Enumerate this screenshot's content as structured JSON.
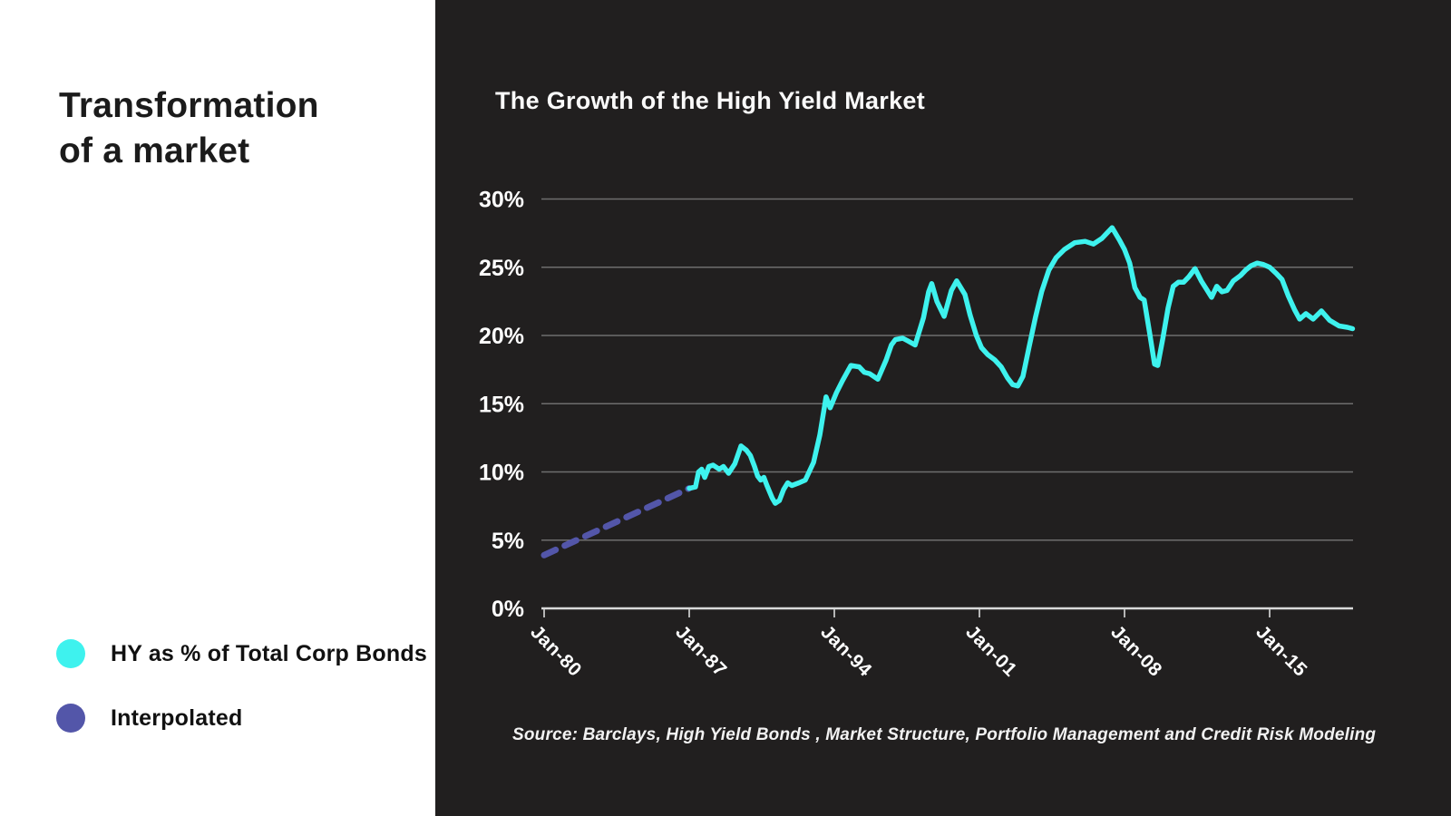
{
  "left_panel": {
    "title_line1": "Transformation",
    "title_line2": "of a market",
    "legend": [
      {
        "label": "HY as % of Total Corp Bonds",
        "color": "#3ef2ee"
      },
      {
        "label": "Interpolated",
        "color": "#5356a9"
      }
    ]
  },
  "chart": {
    "title": "The Growth of the High Yield Market",
    "source": "Source: Barclays, High Yield Bonds , Market Structure, Portfolio Management and Credit Risk Modeling",
    "colors": {
      "background": "#211f1f",
      "panel": "#ffffff",
      "grid": "#6e6e6e",
      "axis": "#d9d9d9",
      "tick": "#b5b5b5",
      "hy_line": "#3ef2ee",
      "interpolated_line": "#5356a9",
      "text": "#ffffff"
    }
  },
  "chart_data": {
    "type": "line",
    "title": "The Growth of the High Yield Market",
    "xlabel": "",
    "ylabel": "HY as % of Total Corp Bonds",
    "ylim": [
      0,
      30
    ],
    "xlim": [
      1980,
      2019
    ],
    "grid": true,
    "legend_position": "left-panel",
    "y_tick_values": [
      0,
      5,
      10,
      15,
      20,
      25,
      30
    ],
    "y_ticks": [
      "0%",
      "5%",
      "10%",
      "15%",
      "20%",
      "25%",
      "30%"
    ],
    "x_tick_years": [
      1980,
      1987,
      1994,
      2001,
      2008,
      2015
    ],
    "x_ticks": [
      "Jan-80",
      "Jan-87",
      "Jan-94",
      "Jan-01",
      "Jan-08",
      "Jan-15"
    ],
    "series": [
      {
        "name": "Interpolated",
        "style": "dashed",
        "color": "#5356a9",
        "points": [
          [
            1980.0,
            3.9
          ],
          [
            1987.0,
            8.8
          ]
        ]
      },
      {
        "name": "HY as % of Total Corp Bonds",
        "style": "solid",
        "color": "#3ef2ee",
        "points": [
          [
            1987.0,
            8.8
          ],
          [
            1987.3,
            8.9
          ],
          [
            1987.45,
            10.0
          ],
          [
            1987.6,
            10.2
          ],
          [
            1987.75,
            9.6
          ],
          [
            1987.95,
            10.4
          ],
          [
            1988.15,
            10.5
          ],
          [
            1988.45,
            10.2
          ],
          [
            1988.65,
            10.4
          ],
          [
            1988.9,
            9.9
          ],
          [
            1989.2,
            10.6
          ],
          [
            1989.5,
            11.9
          ],
          [
            1989.75,
            11.6
          ],
          [
            1989.95,
            11.2
          ],
          [
            1990.15,
            10.4
          ],
          [
            1990.3,
            9.7
          ],
          [
            1990.45,
            9.4
          ],
          [
            1990.6,
            9.6
          ],
          [
            1990.75,
            9.0
          ],
          [
            1991.0,
            8.1
          ],
          [
            1991.15,
            7.7
          ],
          [
            1991.35,
            7.9
          ],
          [
            1991.55,
            8.7
          ],
          [
            1991.75,
            9.2
          ],
          [
            1991.95,
            9.0
          ],
          [
            1992.3,
            9.2
          ],
          [
            1992.6,
            9.4
          ],
          [
            1993.0,
            10.7
          ],
          [
            1993.3,
            12.7
          ],
          [
            1993.6,
            15.5
          ],
          [
            1993.8,
            14.7
          ],
          [
            1994.1,
            15.8
          ],
          [
            1994.4,
            16.7
          ],
          [
            1994.8,
            17.8
          ],
          [
            1995.2,
            17.7
          ],
          [
            1995.45,
            17.3
          ],
          [
            1995.7,
            17.2
          ],
          [
            1996.1,
            16.8
          ],
          [
            1996.5,
            18.2
          ],
          [
            1996.75,
            19.3
          ],
          [
            1996.95,
            19.7
          ],
          [
            1997.3,
            19.8
          ],
          [
            1997.55,
            19.6
          ],
          [
            1997.9,
            19.3
          ],
          [
            1998.3,
            21.3
          ],
          [
            1998.55,
            23.2
          ],
          [
            1998.7,
            23.8
          ],
          [
            1998.95,
            22.5
          ],
          [
            1999.3,
            21.4
          ],
          [
            1999.65,
            23.3
          ],
          [
            1999.9,
            24.0
          ],
          [
            2000.3,
            23.0
          ],
          [
            2000.55,
            21.5
          ],
          [
            2000.85,
            20.0
          ],
          [
            2001.1,
            19.1
          ],
          [
            2001.4,
            18.6
          ],
          [
            2001.75,
            18.2
          ],
          [
            2002.05,
            17.7
          ],
          [
            2002.35,
            16.9
          ],
          [
            2002.6,
            16.4
          ],
          [
            2002.85,
            16.3
          ],
          [
            2003.1,
            17.0
          ],
          [
            2003.4,
            19.2
          ],
          [
            2003.7,
            21.3
          ],
          [
            2004.0,
            23.2
          ],
          [
            2004.35,
            24.8
          ],
          [
            2004.7,
            25.7
          ],
          [
            2005.1,
            26.3
          ],
          [
            2005.6,
            26.8
          ],
          [
            2006.1,
            26.9
          ],
          [
            2006.5,
            26.7
          ],
          [
            2006.9,
            27.1
          ],
          [
            2007.4,
            27.9
          ],
          [
            2007.75,
            27.0
          ],
          [
            2008.0,
            26.3
          ],
          [
            2008.25,
            25.3
          ],
          [
            2008.5,
            23.5
          ],
          [
            2008.75,
            22.8
          ],
          [
            2008.95,
            22.6
          ],
          [
            2009.2,
            20.3
          ],
          [
            2009.45,
            17.9
          ],
          [
            2009.6,
            17.8
          ],
          [
            2009.85,
            19.8
          ],
          [
            2010.1,
            22.0
          ],
          [
            2010.35,
            23.6
          ],
          [
            2010.6,
            23.9
          ],
          [
            2010.85,
            23.9
          ],
          [
            2011.1,
            24.3
          ],
          [
            2011.4,
            24.9
          ],
          [
            2011.7,
            24.0
          ],
          [
            2011.95,
            23.4
          ],
          [
            2012.2,
            22.8
          ],
          [
            2012.45,
            23.6
          ],
          [
            2012.7,
            23.2
          ],
          [
            2012.95,
            23.3
          ],
          [
            2013.25,
            24.0
          ],
          [
            2013.6,
            24.4
          ],
          [
            2013.85,
            24.8
          ],
          [
            2014.1,
            25.1
          ],
          [
            2014.4,
            25.3
          ],
          [
            2014.7,
            25.2
          ],
          [
            2015.0,
            25.0
          ],
          [
            2015.35,
            24.5
          ],
          [
            2015.6,
            24.1
          ],
          [
            2015.9,
            22.9
          ],
          [
            2016.2,
            21.9
          ],
          [
            2016.45,
            21.2
          ],
          [
            2016.75,
            21.6
          ],
          [
            2017.1,
            21.2
          ],
          [
            2017.5,
            21.8
          ],
          [
            2017.9,
            21.1
          ],
          [
            2018.35,
            20.7
          ],
          [
            2018.75,
            20.6
          ],
          [
            2019.0,
            20.5
          ]
        ]
      }
    ]
  }
}
